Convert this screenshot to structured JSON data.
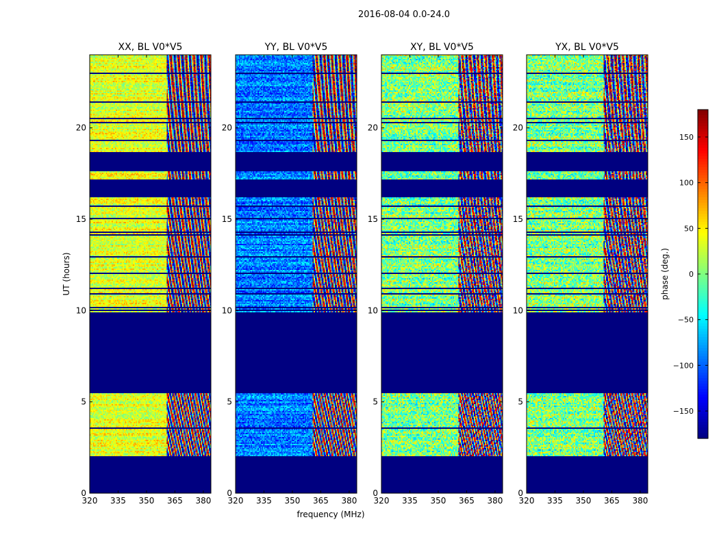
{
  "figure": {
    "suptitle": "2016-08-04 0.0-24.0"
  },
  "chart_data": {
    "type": "heatmap",
    "shared": {
      "xlabel": "frequency (MHz)",
      "ylabel": "UT (hours)",
      "xlim": [
        320,
        384
      ],
      "ylim": [
        0,
        24
      ],
      "xticks": [
        320,
        335,
        350,
        365,
        380
      ],
      "yticks": [
        0,
        5,
        10,
        15,
        20
      ],
      "colorbar": {
        "label": "phase (deg.)",
        "range": [
          -180,
          180
        ],
        "ticks": [
          -150,
          -100,
          -50,
          0,
          50,
          100,
          150
        ],
        "colormap": "jet"
      },
      "flagged_ut_ranges": [
        [
          0,
          2
        ],
        [
          5.5,
          9.9
        ],
        [
          16.2,
          17.2
        ],
        [
          17.6,
          18.7
        ]
      ],
      "wideband_split_mhz": 361
    },
    "panels": [
      {
        "title": "XX, BL V0*V5",
        "phase_offset_deg": 35,
        "noise_deg": 60
      },
      {
        "title": "YY, BL V0*V5",
        "phase_offset_deg": -90,
        "noise_deg": 70
      },
      {
        "title": "XY, BL V0*V5",
        "phase_offset_deg": 0,
        "noise_deg": 110
      },
      {
        "title": "YX, BL V0*V5",
        "phase_offset_deg": 0,
        "noise_deg": 110
      }
    ]
  }
}
